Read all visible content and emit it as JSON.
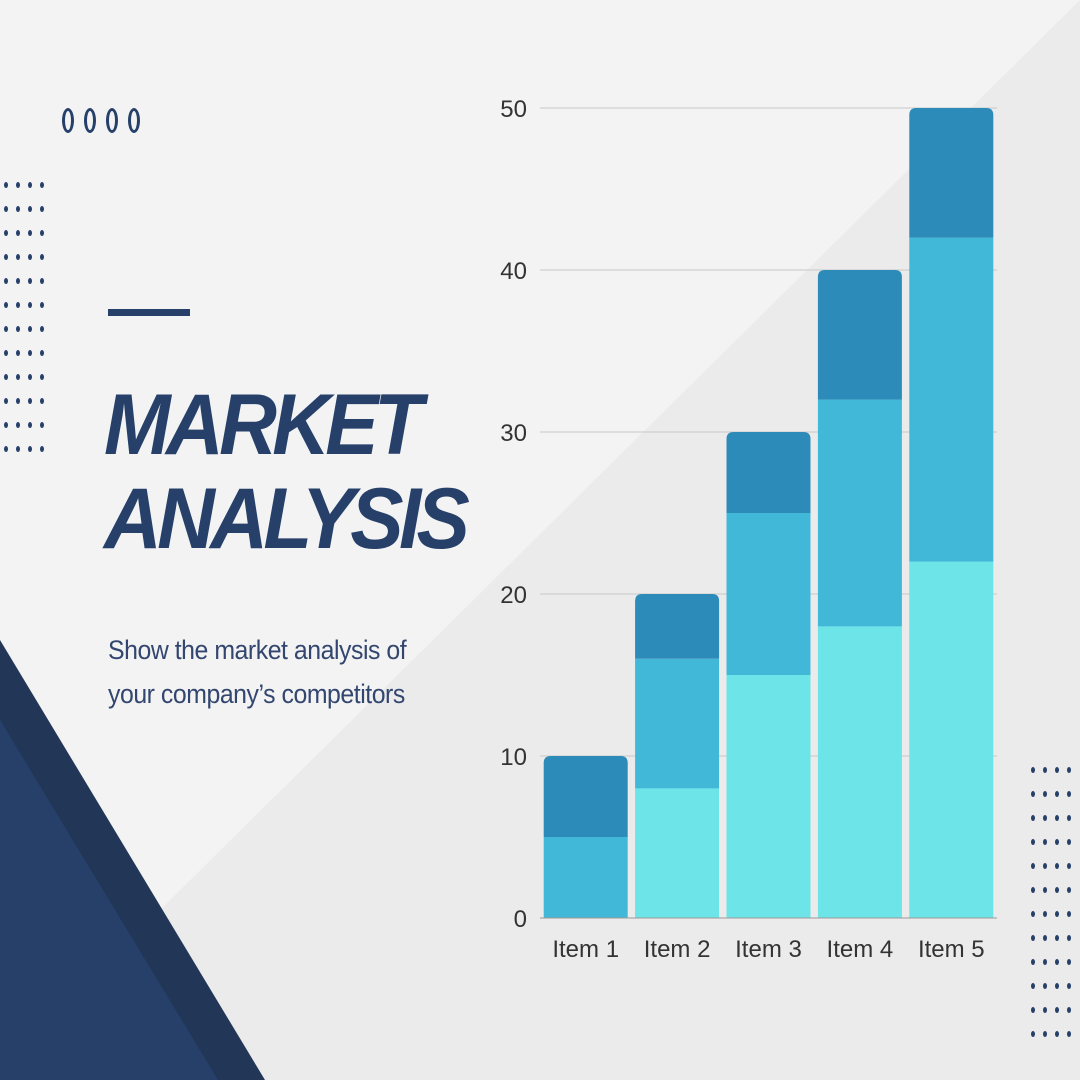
{
  "title": {
    "line1": "MARKET",
    "line2": "ANALYSIS"
  },
  "subtitle": "Show the market analysis of your company’s competitors",
  "colors": {
    "navy": "#264069",
    "navy_dark": "#223658",
    "bg": "#f3f3f3",
    "bg_shade": "#ebebeb",
    "seg_light": "#6ce4e8",
    "seg_mid": "#41b8d7",
    "seg_dark": "#2c8bb9",
    "grid": "#c7c7c7",
    "text": "#333333"
  },
  "decor": {
    "circle_count": 4
  },
  "chart_data": {
    "type": "bar",
    "stacked": true,
    "categories": [
      "Item 1",
      "Item 2",
      "Item 3",
      "Item 4",
      "Item 5"
    ],
    "series": [
      {
        "values": [
          0,
          8,
          15,
          18,
          22
        ],
        "color": "#6ce4e8"
      },
      {
        "values": [
          5,
          8,
          10,
          14,
          20
        ],
        "color": "#41b8d7"
      },
      {
        "values": [
          5,
          4,
          5,
          8,
          8
        ],
        "color": "#2c8bb9"
      }
    ],
    "y_ticks": [
      "0",
      "10",
      "20",
      "30",
      "40",
      "50"
    ],
    "ylim": [
      0,
      50
    ],
    "grid": true,
    "legend": "none"
  }
}
